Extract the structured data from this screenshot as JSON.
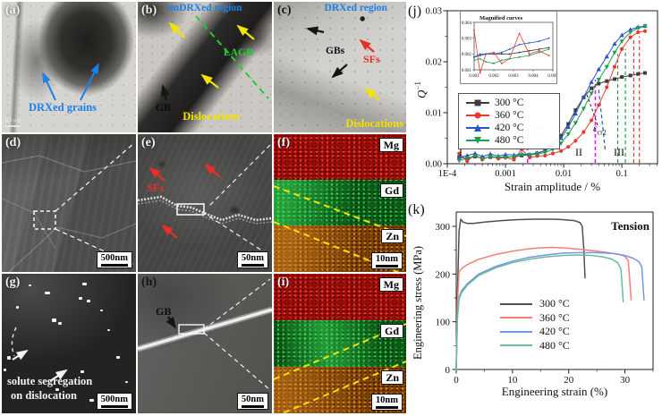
{
  "annotation_colors": {
    "blue": "#1d7fe8",
    "yellow": "#f2e205",
    "green": "#1fcf2f",
    "red": "#e53026",
    "magenta": "#ff00ff",
    "white": "#f5f5f5",
    "black": "#151515"
  },
  "panels": {
    "a": {
      "label": "(a)",
      "annotation": "DRXed grains",
      "scalebar": "0.5 µm"
    },
    "b": {
      "label": "(b)",
      "region": "unDRXed region",
      "lagb": "LAGB",
      "gb": "GB",
      "dislocations": "Dislocations"
    },
    "c": {
      "label": "(c)",
      "region": "DRXed region",
      "gbs": "GBs",
      "sfs": "SFs",
      "dislocations": "Dislocations"
    },
    "d": {
      "label": "(d)",
      "scalebar": "500nm"
    },
    "e": {
      "label": "(e)",
      "sfs": "SFs",
      "scalebar": "50nm"
    },
    "f": {
      "label": "(f)",
      "mg": "Mg",
      "gd": "Gd",
      "zn": "Zn",
      "scalebar": "10nm"
    },
    "g": {
      "label": "(g)",
      "caption1": "solute segregation",
      "caption2": "on dislocation",
      "scalebar": "500nm"
    },
    "h": {
      "label": "(h)",
      "gb": "GB",
      "scalebar": "50nm"
    },
    "i": {
      "label": "(i)",
      "mg": "Mg",
      "gd": "Gd",
      "zn": "Zn",
      "scalebar": "10nm"
    }
  },
  "chart_data": [
    {
      "id": "j",
      "type": "line",
      "panel_label": "(j)",
      "xlabel": "Strain amplitude / %",
      "ylabel": "Q^-1",
      "ylabel_display": {
        "base": "Q",
        "sup": "−1"
      },
      "xscale": "log",
      "xlim": [
        0.0001,
        0.41
      ],
      "ylim": [
        0,
        0.03
      ],
      "xticks": [
        0.0001,
        0.001,
        0.01,
        0.1
      ],
      "xtick_labels": [
        "1E-4",
        "0.001",
        "0.01",
        "0.1"
      ],
      "yticks": [
        0,
        0.01,
        0.02,
        0.03
      ],
      "ytick_labels": [
        "0.00",
        "0.01",
        "0.02",
        "0.03"
      ],
      "region_labels": [
        "I",
        "II",
        "III"
      ],
      "ecr1": {
        "sym": "ε",
        "sub": "cr1"
      },
      "ecr2": {
        "sym": "ε",
        "sub": "cr2"
      },
      "x": [
        0.00016,
        0.00022,
        0.0003,
        0.0004,
        0.00055,
        0.00075,
        0.001,
        0.0014,
        0.0019,
        0.0026,
        0.0035,
        0.0048,
        0.0065,
        0.009,
        0.012,
        0.016,
        0.022,
        0.03,
        0.04,
        0.055,
        0.075,
        0.1,
        0.14,
        0.19,
        0.25
      ],
      "series": [
        {
          "name": "300 °C",
          "color": "#3d3d3d",
          "marker": "square",
          "y": [
            0.0013,
            0.001,
            0.0014,
            0.0011,
            0.0013,
            0.0012,
            0.0014,
            0.0013,
            0.0016,
            0.0017,
            0.002,
            0.0026,
            0.0038,
            0.0055,
            0.0078,
            0.0105,
            0.013,
            0.0148,
            0.0157,
            0.0162,
            0.0166,
            0.017,
            0.0173,
            0.0176,
            0.0178
          ]
        },
        {
          "name": "360 °C",
          "color": "#e8392f",
          "marker": "circle",
          "y": [
            0.002,
            0.0005,
            0.0018,
            0.0008,
            0.0015,
            0.001,
            0.0012,
            0.0008,
            0.0028,
            0.0012,
            0.0015,
            0.0016,
            0.002,
            0.0025,
            0.0033,
            0.0045,
            0.0062,
            0.0085,
            0.0115,
            0.015,
            0.019,
            0.0225,
            0.0248,
            0.0258,
            0.026
          ]
        },
        {
          "name": "420 °C",
          "color": "#2456c8",
          "marker": "triangle-up",
          "y": [
            0.0012,
            0.0016,
            0.002,
            0.0014,
            0.0019,
            0.0015,
            0.0018,
            0.0017,
            0.0019,
            0.0018,
            0.0021,
            0.0026,
            0.0035,
            0.005,
            0.0072,
            0.0098,
            0.013,
            0.016,
            0.0185,
            0.021,
            0.0235,
            0.0252,
            0.0263,
            0.0268,
            0.027
          ]
        },
        {
          "name": "480 °C",
          "color": "#1e9e50",
          "marker": "triangle-down",
          "y": [
            0.0006,
            0.0011,
            0.0015,
            0.001,
            0.0014,
            0.0013,
            0.0012,
            0.0014,
            0.0017,
            0.0017,
            0.0019,
            0.0022,
            0.0028,
            0.004,
            0.0058,
            0.008,
            0.0108,
            0.0138,
            0.0165,
            0.019,
            0.0218,
            0.024,
            0.0258,
            0.0266,
            0.027
          ]
        }
      ],
      "guides": [
        {
          "x": 0.0024,
          "ytop": 0.0075,
          "color": "#ff00ff"
        },
        {
          "x": 0.035,
          "ytop": 0.0165,
          "color": "#ff00ff"
        },
        {
          "x1": 0.04,
          "y1": 0.0145,
          "x2": 0.052,
          "y2": 0.0025,
          "color": "#2456c8"
        },
        {
          "x": 0.085,
          "ytop": 0.0215,
          "color": "#1e9e50"
        },
        {
          "x": 0.115,
          "ytop": 0.0225,
          "color": "#1e9e50"
        },
        {
          "x": 0.16,
          "ytop": 0.0245,
          "color": "#e8392f"
        },
        {
          "x": 0.2,
          "ytop": 0.025,
          "color": "#e8392f"
        }
      ],
      "inset": {
        "title": "Magnified curves",
        "xlim": [
          0.001,
          0.005
        ],
        "ylim": [
          0.001,
          0.004
        ],
        "xticks": [
          "0.001",
          "0.002",
          "0.003",
          "0.004",
          "0.005"
        ],
        "yticks": [
          "0.001",
          "0.002",
          "0.003",
          "0.004"
        ],
        "x": [
          0.001,
          0.0013,
          0.0016,
          0.002,
          0.0024,
          0.0028,
          0.0033,
          0.0038,
          0.0043,
          0.0048
        ],
        "series": [
          {
            "name": "300 °C",
            "color": "#3d3d3d",
            "y": [
              0.0018,
              0.0019,
              0.002,
              0.002,
              0.002,
              0.002,
              0.0021,
              0.0022,
              0.0023,
              0.0024
            ]
          },
          {
            "name": "360 °C",
            "color": "#e8392f",
            "y": [
              0.0035,
              0.0008,
              0.002,
              0.0021,
              0.0014,
              0.0017,
              0.0033,
              0.002,
              0.0022,
              0.0019
            ]
          },
          {
            "name": "420 °C",
            "color": "#2456c8",
            "y": [
              0.0018,
              0.002,
              0.002,
              0.002,
              0.0021,
              0.0023,
              0.0026,
              0.0027,
              0.0028,
              0.003
            ]
          },
          {
            "name": "480 °C",
            "color": "#1e9e50",
            "y": [
              0.0016,
              0.0017,
              0.0015,
              0.0014,
              0.0016,
              0.0017,
              0.0018,
              0.0019,
              0.0021,
              0.0023
            ]
          }
        ]
      }
    },
    {
      "id": "k",
      "type": "line",
      "panel_label": "(k)",
      "annotations": [
        "Tension"
      ],
      "xlabel": "Engineering strain (%)",
      "ylabel": "Engineering stress (MPa)",
      "xscale": "linear",
      "xlim": [
        0,
        35
      ],
      "ylim": [
        0,
        330
      ],
      "xticks": [
        0,
        10,
        20,
        30
      ],
      "xtick_labels": [
        "0",
        "10",
        "20",
        "30"
      ],
      "yticks": [
        0,
        100,
        200,
        300
      ],
      "ytick_labels": [
        "0",
        "100",
        "200",
        "300"
      ],
      "series": [
        {
          "name": "300 °C",
          "color": "#4f4f4f",
          "x": [
            0,
            0.2,
            0.5,
            0.8,
            1.2,
            2,
            3,
            5,
            8,
            11,
            14,
            17,
            19,
            21,
            22,
            22.4,
            22.7,
            22.9
          ],
          "y": [
            0,
            150,
            290,
            315,
            309,
            306,
            306,
            309,
            312,
            314,
            315,
            315,
            314,
            312,
            308,
            300,
            250,
            192
          ]
        },
        {
          "name": "360 °C",
          "color": "#f28077",
          "x": [
            0,
            0.2,
            0.5,
            1,
            2,
            4,
            7,
            10,
            13,
            15,
            17,
            19,
            22,
            25,
            27,
            29,
            30,
            30.6,
            30.9,
            31.1
          ],
          "y": [
            0,
            140,
            205,
            212,
            220,
            231,
            241,
            248,
            253,
            255,
            256,
            255,
            252,
            248,
            245,
            241,
            237,
            228,
            180,
            146
          ]
        },
        {
          "name": "420 °C",
          "color": "#7495e6",
          "x": [
            0,
            0.2,
            0.5,
            1,
            2,
            4,
            7,
            10,
            13,
            16,
            19,
            22,
            25,
            28,
            30,
            31.5,
            32.5,
            33,
            33.2,
            33.4
          ],
          "y": [
            0,
            110,
            152,
            166,
            180,
            200,
            216,
            227,
            235,
            240,
            244,
            245,
            245,
            243,
            239,
            233,
            226,
            215,
            180,
            146
          ]
        },
        {
          "name": "480 °C",
          "color": "#67bd94",
          "x": [
            0,
            0.2,
            0.5,
            1,
            2,
            4,
            7,
            10,
            13,
            16,
            19,
            22,
            24,
            26,
            27.5,
            28.7,
            29.3,
            29.5,
            29.7
          ],
          "y": [
            0,
            105,
            148,
            162,
            177,
            197,
            213,
            224,
            231,
            236,
            239,
            240,
            239,
            236,
            232,
            224,
            210,
            175,
            142
          ]
        }
      ]
    }
  ]
}
